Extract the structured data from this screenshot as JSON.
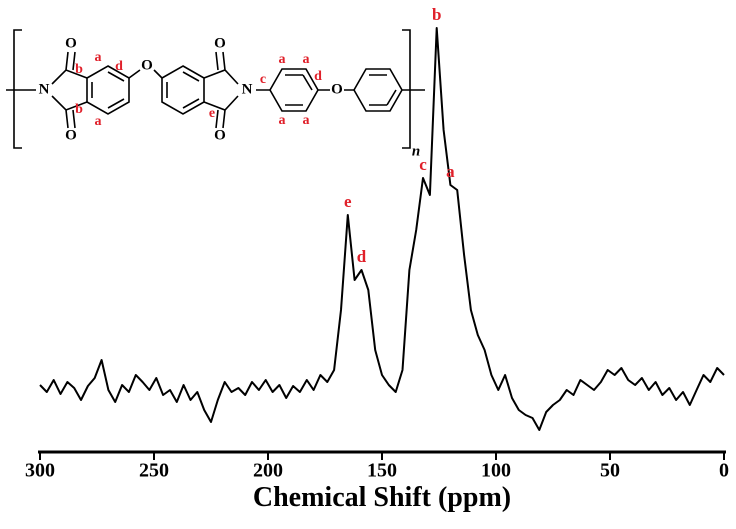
{
  "chart_data": {
    "type": "line",
    "x_label": "Chemical Shift (ppm)",
    "x": [
      300,
      297,
      294,
      291,
      288,
      285,
      282,
      279,
      276,
      273,
      270,
      267,
      264,
      261,
      258,
      255,
      252,
      249,
      246,
      243,
      240,
      237,
      234,
      231,
      228,
      225,
      222,
      219,
      216,
      213,
      210,
      207,
      204,
      201,
      198,
      195,
      192,
      189,
      186,
      183,
      180,
      177,
      174,
      171,
      168,
      165,
      162,
      159,
      156,
      153,
      150,
      147,
      144,
      141,
      138,
      135,
      132,
      129,
      126,
      123,
      120,
      117,
      114,
      111,
      108,
      105,
      102,
      99,
      96,
      93,
      90,
      87,
      84,
      81,
      78,
      75,
      72,
      69,
      66,
      63,
      60,
      57,
      54,
      51,
      48,
      45,
      42,
      39,
      36,
      33,
      30,
      27,
      24,
      21,
      18,
      15,
      12,
      9,
      6,
      3,
      0
    ],
    "values": [
      45,
      38,
      50,
      36,
      48,
      42,
      30,
      44,
      52,
      70,
      40,
      28,
      45,
      38,
      55,
      48,
      40,
      52,
      35,
      40,
      28,
      45,
      30,
      38,
      20,
      8,
      30,
      48,
      38,
      42,
      35,
      48,
      40,
      50,
      38,
      45,
      32,
      44,
      38,
      50,
      40,
      55,
      48,
      60,
      120,
      215,
      150,
      160,
      140,
      80,
      55,
      45,
      38,
      60,
      160,
      200,
      252,
      235,
      402,
      300,
      245,
      240,
      175,
      120,
      95,
      80,
      55,
      40,
      55,
      32,
      20,
      15,
      12,
      0,
      18,
      25,
      30,
      40,
      35,
      50,
      45,
      40,
      48,
      60,
      55,
      62,
      50,
      45,
      52,
      40,
      48,
      35,
      42,
      30,
      38,
      25,
      40,
      55,
      48,
      62,
      55
    ],
    "color": "#000000",
    "xlim": [
      300,
      0
    ],
    "xticks": [
      300,
      250,
      200,
      150,
      100,
      50,
      0
    ],
    "annotations": [
      {
        "label": "e",
        "x": 165
      },
      {
        "label": "d",
        "x": 159
      },
      {
        "label": "c",
        "x": 132
      },
      {
        "label": "b",
        "x": 126
      },
      {
        "label": "a",
        "x": 120
      }
    ],
    "annotation_color": "#e0202a"
  },
  "structure": {
    "labels": [
      "N",
      "O",
      "O",
      "b",
      "b",
      "a",
      "a",
      "d",
      "O",
      "O",
      "O",
      "N",
      "e",
      "c",
      "a",
      "a",
      "a",
      "a",
      "d",
      "O",
      "n"
    ]
  }
}
